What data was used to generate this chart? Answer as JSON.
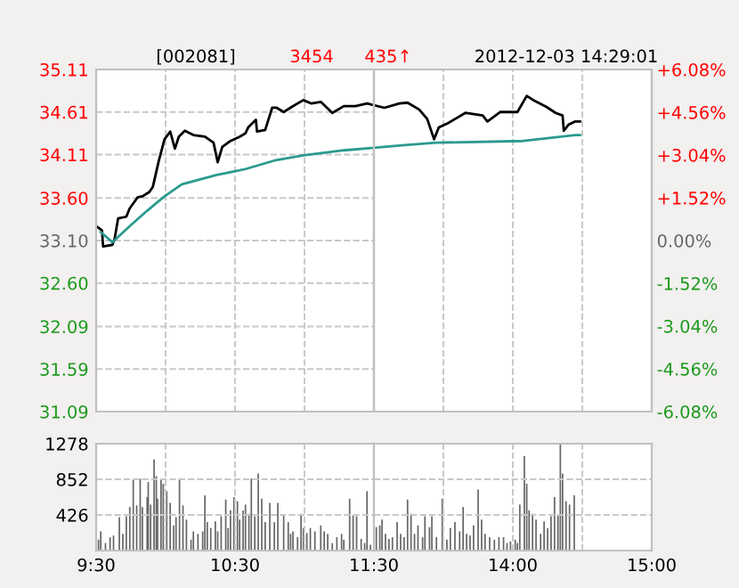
{
  "chart_data": [
    {
      "type": "line",
      "title": "[002081]",
      "annotations": [
        "3454",
        "435↑",
        "2012-12-03 14:29:01"
      ],
      "tick_labels": "y",
      "grid": true,
      "line_style": "solid",
      "xlim": [
        9.5,
        11.5
      ],
      "xticks": [
        {
          "value": 9.5,
          "label": null
        },
        {
          "value": 10,
          "label": null
        },
        {
          "value": 10.5,
          "label": null
        },
        {
          "value": 11,
          "label": null
        },
        {
          "value": 11.5,
          "label": null
        }
      ],
      "ylim": [
        31.09,
        35.11
      ],
      "yticks": [
        {
          "value": 31.09,
          "label": "31.09"
        },
        {
          "value": 31.59,
          "label": "31.59"
        },
        {
          "value": 32.09,
          "label": "32.09"
        },
        {
          "value": 32.6,
          "label": "32.60"
        },
        {
          "value": 33.1,
          "label": "33.10"
        },
        {
          "value": 33.6,
          "label": "33.60"
        },
        {
          "value": 34.11,
          "label": "34.11"
        },
        {
          "value": 34.61,
          "label": "34.61"
        },
        {
          "value": 35.11,
          "label": "35.11"
        }
      ],
      "series": [
        {
          "color": "#000000",
          "x": [
            9.5,
            9.542,
            9.55,
            9.617,
            9.633,
            9.658,
            9.717,
            9.742,
            9.8,
            9.833,
            9.883,
            9.908,
            9.95,
            9.992,
            10.033,
            10.067,
            10.095,
            10.138,
            10.2,
            10.283,
            10.345,
            10.375,
            10.408,
            10.467,
            10.533,
            10.575,
            10.595,
            10.65,
            10.658,
            10.717,
            10.767,
            10.8,
            10.85,
            10.908,
            10.992,
            11.05,
            11.117,
            11.2,
            11.283,
            11.367,
            11.45,
            11.5
          ],
          "values": [
            33.27,
            33.22,
            33.03,
            33.05,
            33.12,
            33.36,
            33.38,
            33.48,
            33.61,
            33.62,
            33.67,
            33.73,
            34.03,
            34.29,
            34.38,
            34.18,
            34.32,
            34.39,
            34.34,
            34.32,
            34.25,
            34.02,
            34.2,
            34.27,
            34.32,
            34.36,
            34.43,
            34.52,
            34.38,
            34.4,
            34.66,
            34.66,
            34.61,
            34.67,
            34.75,
            34.71,
            34.73,
            34.6,
            34.68,
            34.68,
            34.71,
            34.69
          ]
        },
        {
          "color": "#2a9a8e",
          "x": [
            9.533,
            9.617,
            9.742,
            9.867,
            9.992,
            10.117,
            10.367,
            10.575,
            10.783,
            10.992,
            11.283,
            11.5
          ],
          "values": [
            33.2,
            33.08,
            33.27,
            33.45,
            33.62,
            33.76,
            33.87,
            33.94,
            34.04,
            34.1,
            34.16,
            34.19
          ]
        }
      ]
    },
    {
      "type": "line",
      "tick_labels": "y",
      "grid": true,
      "line_style": "solid",
      "xlim": [
        13,
        15
      ],
      "xticks": [
        {
          "value": 13,
          "label": null
        },
        {
          "value": 13.5,
          "label": null
        },
        {
          "value": 14,
          "label": null
        },
        {
          "value": 14.5,
          "label": null
        },
        {
          "value": 15,
          "label": null
        }
      ],
      "ylim": [
        31.09,
        35.11
      ],
      "y2lim": [
        -6.08,
        6.08
      ],
      "y2ticks": [
        {
          "value": -6.08,
          "label": "-6.08%"
        },
        {
          "value": -4.56,
          "label": "-4.56%"
        },
        {
          "value": -3.04,
          "label": "-3.04%"
        },
        {
          "value": -1.52,
          "label": "-1.52%"
        },
        {
          "value": 0,
          "label": "0.00%"
        },
        {
          "value": 1.52,
          "label": "+1.52%"
        },
        {
          "value": 3.04,
          "label": "+3.04%"
        },
        {
          "value": 4.56,
          "label": "+4.56%"
        },
        {
          "value": 6.08,
          "label": "+6.08%"
        }
      ],
      "series": [
        {
          "color": "#000000",
          "x": [
            13,
            13.075,
            13.183,
            13.242,
            13.325,
            13.383,
            13.433,
            13.467,
            13.533,
            13.575,
            13.658,
            13.783,
            13.817,
            13.908,
            14.033,
            14.1,
            14.158,
            14.242,
            14.308,
            14.358,
            14.367,
            14.4,
            14.45,
            14.483
          ],
          "values": [
            34.69,
            34.66,
            34.71,
            34.72,
            34.64,
            34.53,
            34.29,
            34.43,
            34.48,
            34.52,
            34.6,
            34.57,
            34.5,
            34.61,
            34.61,
            34.8,
            34.74,
            34.67,
            34.6,
            34.57,
            34.39,
            34.46,
            34.5,
            34.5
          ]
        },
        {
          "color": "#2a9a8e",
          "x": [
            13,
            13.2,
            13.45,
            14.075,
            14.45,
            14.483
          ],
          "values": [
            34.19,
            34.22,
            34.25,
            34.27,
            34.34,
            34.34
          ]
        }
      ]
    },
    {
      "type": "bar",
      "color": "#666666",
      "grid": true,
      "xlim": [
        9.5,
        11.5
      ],
      "xticks": [
        {
          "value": 9.5,
          "label": "9:30"
        },
        {
          "value": 10,
          "label": null
        },
        {
          "value": 10.5,
          "label": "10:30"
        },
        {
          "value": 11,
          "label": null
        },
        {
          "value": 11.5,
          "label": "11:30"
        }
      ],
      "ylim": [
        0,
        1278
      ],
      "yticks": [
        {
          "value": 0,
          "label": null
        },
        426,
        852,
        1278
      ],
      "x": [
        9.517,
        9.533,
        9.567,
        9.6,
        9.625,
        9.667,
        9.692,
        9.717,
        9.742,
        9.767,
        9.792,
        9.817,
        9.833,
        9.867,
        9.875,
        9.892,
        9.917,
        9.933,
        9.942,
        9.967,
        9.983,
        10.008,
        10.033,
        10.058,
        10.075,
        10.1,
        10.125,
        10.15,
        10.183,
        10.2,
        10.233,
        10.267,
        10.283,
        10.3,
        10.325,
        10.358,
        10.375,
        10.4,
        10.433,
        10.45,
        10.467,
        10.492,
        10.517,
        10.533,
        10.558,
        10.575,
        10.6,
        10.617,
        10.642,
        10.667,
        10.692,
        10.717,
        10.75,
        10.783,
        10.808,
        10.85,
        10.883,
        10.9,
        10.917,
        10.95,
        10.975,
        10.992,
        11.017,
        11.042,
        11.075,
        11.117,
        11.142,
        11.167,
        11.2,
        11.233,
        11.267,
        11.283,
        11.325,
        11.35,
        11.375,
        11.408,
        11.433,
        11.45,
        11.475
      ],
      "values": [
        130,
        230,
        90,
        160,
        180,
        400,
        200,
        410,
        520,
        850,
        540,
        860,
        520,
        640,
        820,
        550,
        1090,
        890,
        620,
        860,
        800,
        710,
        570,
        300,
        400,
        860,
        540,
        370,
        130,
        230,
        200,
        230,
        660,
        340,
        270,
        350,
        230,
        410,
        610,
        270,
        480,
        640,
        590,
        370,
        480,
        550,
        440,
        860,
        410,
        920,
        620,
        340,
        570,
        340,
        570,
        420,
        340,
        200,
        230,
        160,
        440,
        270,
        210,
        270,
        230,
        300,
        230,
        200,
        90,
        160,
        200,
        130,
        620,
        420,
        410,
        140,
        90,
        710,
        70
      ]
    },
    {
      "type": "bar",
      "color": "#666666",
      "grid": true,
      "tick_labels": "x",
      "xlim": [
        13,
        15
      ],
      "xticks": [
        {
          "value": 13,
          "label": null
        },
        {
          "value": 13.5,
          "label": null
        },
        {
          "value": 14,
          "label": "14:00"
        },
        {
          "value": 14.5,
          "label": null
        },
        {
          "value": 15,
          "label": "15:00"
        }
      ],
      "ylim": [
        0,
        1278
      ],
      "yticks": [
        {
          "value": 0,
          "label": null
        },
        {
          "value": 426,
          "label": null
        },
        {
          "value": 852,
          "label": null
        },
        {
          "value": 1278,
          "label": null
        }
      ],
      "x": [
        13.017,
        13.042,
        13.058,
        13.083,
        13.108,
        13.133,
        13.167,
        13.192,
        13.217,
        13.242,
        13.267,
        13.292,
        13.317,
        13.35,
        13.367,
        13.4,
        13.417,
        13.45,
        13.492,
        13.525,
        13.55,
        13.583,
        13.617,
        13.642,
        13.667,
        13.692,
        13.717,
        13.75,
        13.775,
        13.8,
        13.833,
        13.867,
        13.9,
        13.933,
        13.958,
        13.983,
        14.017,
        14.033,
        14.05,
        14.083,
        14.1,
        14.117,
        14.142,
        14.167,
        14.2,
        14.225,
        14.25,
        14.275,
        14.3,
        14.325,
        14.342,
        14.358,
        14.383,
        14.408,
        14.442
      ],
      "values": [
        280,
        300,
        370,
        200,
        140,
        160,
        340,
        200,
        160,
        610,
        440,
        200,
        300,
        160,
        410,
        280,
        410,
        160,
        620,
        130,
        270,
        340,
        230,
        520,
        200,
        180,
        300,
        730,
        370,
        200,
        160,
        130,
        160,
        160,
        90,
        110,
        130,
        90,
        550,
        1130,
        800,
        480,
        440,
        370,
        200,
        350,
        270,
        410,
        640,
        420,
        1270,
        920,
        590,
        550,
        660
      ]
    }
  ]
}
